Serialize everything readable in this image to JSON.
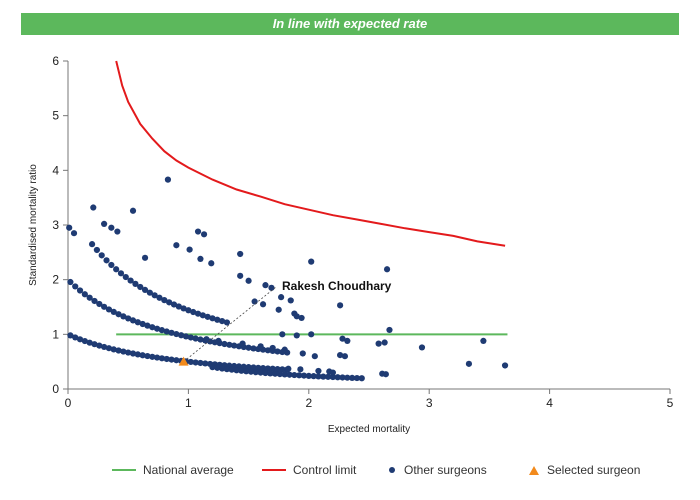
{
  "banner": {
    "title": "In line with expected rate",
    "color": "#5cb85c"
  },
  "chart_data": {
    "type": "scatter",
    "xlabel": "Expected mortality",
    "ylabel": "Standardised mortality ratio",
    "xlim": [
      0,
      5
    ],
    "ylim": [
      0,
      6
    ],
    "xticks": [
      "0",
      "1",
      "2",
      "3",
      "4",
      "5"
    ],
    "yticks": [
      "0",
      "1",
      "2",
      "3",
      "4",
      "5",
      "6"
    ],
    "grid": false,
    "legend_position": "bottom",
    "colors": {
      "national": "#5cb85c",
      "control": "#e31a1c",
      "others": "#1f3b73",
      "selected": "#f28a1c"
    },
    "national_average": {
      "name": "National average",
      "x": [
        0.4,
        3.65
      ],
      "y": [
        1,
        1
      ]
    },
    "control_limit": {
      "name": "Control limit",
      "points": [
        [
          0.4,
          6.0
        ],
        [
          0.45,
          5.55
        ],
        [
          0.5,
          5.25
        ],
        [
          0.6,
          4.85
        ],
        [
          0.7,
          4.58
        ],
        [
          0.8,
          4.35
        ],
        [
          0.9,
          4.18
        ],
        [
          1.0,
          4.05
        ],
        [
          1.2,
          3.83
        ],
        [
          1.4,
          3.65
        ],
        [
          1.6,
          3.52
        ],
        [
          1.8,
          3.38
        ],
        [
          2.0,
          3.28
        ],
        [
          2.2,
          3.18
        ],
        [
          2.4,
          3.1
        ],
        [
          2.6,
          3.02
        ],
        [
          2.8,
          2.94
        ],
        [
          3.0,
          2.87
        ],
        [
          3.2,
          2.8
        ],
        [
          3.4,
          2.7
        ],
        [
          3.63,
          2.62
        ]
      ]
    },
    "other_surgeons": {
      "name": "Other surgeons",
      "points": [
        [
          0.01,
          2.95
        ],
        [
          0.05,
          2.85
        ],
        [
          0.21,
          3.32
        ],
        [
          0.3,
          3.02
        ],
        [
          0.36,
          2.95
        ],
        [
          0.41,
          2.88
        ],
        [
          0.54,
          3.26
        ],
        [
          0.64,
          2.4
        ],
        [
          0.83,
          3.83
        ],
        [
          0.9,
          2.63
        ],
        [
          1.01,
          2.55
        ],
        [
          1.08,
          2.88
        ],
        [
          1.13,
          2.83
        ],
        [
          1.1,
          2.38
        ],
        [
          1.19,
          2.3
        ],
        [
          1.43,
          2.47
        ],
        [
          1.43,
          2.07
        ],
        [
          1.5,
          1.98
        ],
        [
          1.64,
          1.9
        ],
        [
          1.69,
          1.85
        ],
        [
          1.62,
          1.55
        ],
        [
          1.75,
          1.45
        ],
        [
          1.77,
          1.68
        ],
        [
          1.85,
          1.62
        ],
        [
          1.88,
          1.38
        ],
        [
          1.9,
          1.33
        ],
        [
          1.94,
          1.3
        ],
        [
          1.78,
          1.0
        ],
        [
          1.9,
          0.98
        ],
        [
          2.02,
          2.33
        ],
        [
          2.26,
          1.53
        ],
        [
          2.28,
          0.92
        ],
        [
          2.32,
          0.88
        ],
        [
          2.26,
          0.62
        ],
        [
          2.3,
          0.6
        ],
        [
          2.65,
          2.19
        ],
        [
          2.67,
          1.08
        ],
        [
          2.58,
          0.83
        ],
        [
          2.63,
          0.85
        ],
        [
          2.61,
          0.28
        ],
        [
          2.64,
          0.27
        ],
        [
          2.94,
          0.76
        ],
        [
          3.33,
          0.46
        ],
        [
          3.45,
          0.88
        ],
        [
          3.63,
          0.43
        ],
        [
          1.8,
          0.72
        ],
        [
          1.7,
          0.75
        ],
        [
          1.6,
          0.78
        ],
        [
          1.45,
          0.83
        ],
        [
          1.25,
          0.88
        ],
        [
          1.15,
          0.91
        ],
        [
          1.95,
          0.65
        ],
        [
          2.05,
          0.6
        ],
        [
          2.17,
          0.32
        ],
        [
          2.2,
          0.3
        ],
        [
          2.08,
          0.33
        ],
        [
          1.93,
          0.36
        ],
        [
          1.83,
          0.37
        ],
        [
          2.02,
          1.0
        ],
        [
          1.55,
          1.6
        ]
      ]
    },
    "selected_surgeon": {
      "name": "Selected surgeon",
      "label": "Rakesh Choudhary",
      "x": 0.96,
      "y": 0.5
    }
  },
  "legend": {
    "national_label": "National average",
    "control_label": "Control limit",
    "others_label": "Other surgeons",
    "selected_label": "Selected surgeon"
  }
}
